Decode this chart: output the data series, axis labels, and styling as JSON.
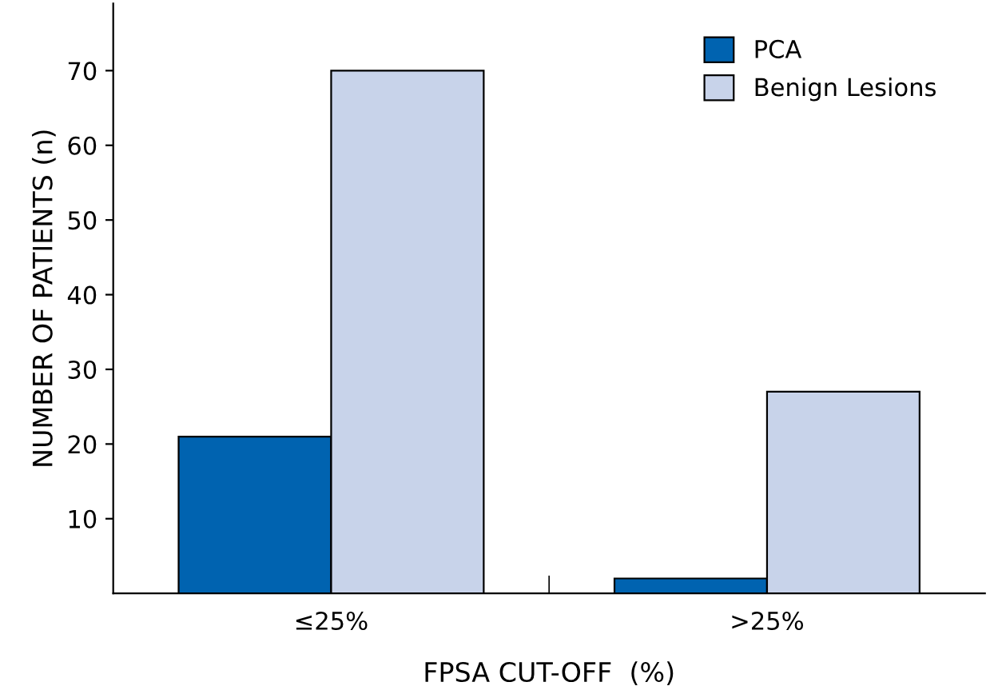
{
  "chart_data": {
    "type": "bar",
    "categories": [
      "≤25%",
      ">25%"
    ],
    "series": [
      {
        "name": "PCA",
        "color": "#0063b0",
        "values": [
          21,
          2
        ]
      },
      {
        "name": "Benign Lesions",
        "color": "#c8d3ea",
        "values": [
          70,
          27
        ]
      }
    ],
    "xlabel": "FPSA CUT-OFF  (%)",
    "ylabel": "NUMBER OF PATIENTS (n)",
    "ylim": [
      0,
      79
    ],
    "yticks": [
      10,
      20,
      30,
      40,
      50,
      60,
      70
    ],
    "legend": "top right",
    "grid": false
  }
}
